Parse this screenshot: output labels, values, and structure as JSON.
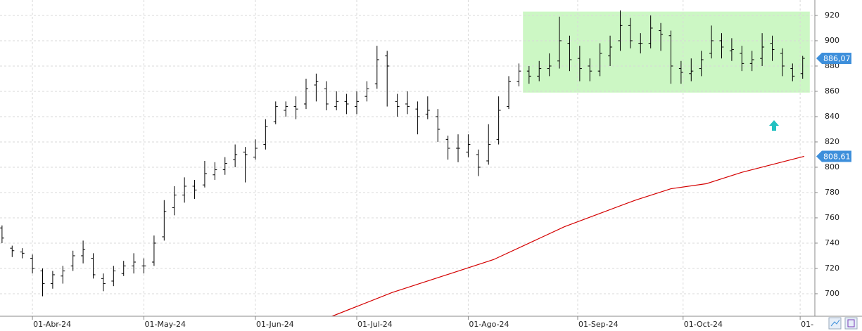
{
  "chart_data": {
    "type": "ohlc",
    "x": [
      0,
      2,
      4,
      6,
      8,
      10,
      12,
      14,
      16,
      18,
      20,
      22,
      24,
      26,
      28,
      30,
      32,
      34,
      36,
      38,
      40,
      42,
      44,
      46,
      48,
      50,
      52,
      54,
      56,
      58,
      60,
      62,
      64,
      66,
      68,
      70,
      72,
      74,
      76,
      78,
      80,
      82,
      84,
      86,
      88,
      90,
      92,
      94,
      96,
      98,
      100,
      102,
      104,
      106,
      108,
      110,
      112,
      114,
      116,
      118,
      120,
      122,
      124,
      126,
      128,
      130,
      132,
      134,
      136,
      138,
      140,
      142,
      144,
      146,
      148,
      150,
      152,
      154,
      156,
      158
    ],
    "open": [
      752,
      736,
      733,
      728,
      718,
      708,
      714,
      722,
      730,
      728,
      712,
      710,
      716,
      722,
      722,
      725,
      745,
      768,
      778,
      785,
      786,
      794,
      798,
      806,
      812,
      808,
      818,
      836,
      845,
      848,
      850,
      865,
      862,
      848,
      852,
      848,
      856,
      866,
      888,
      852,
      850,
      846,
      842,
      840,
      822,
      815,
      812,
      810,
      805,
      822,
      848,
      868,
      876,
      872,
      878,
      884,
      898,
      886,
      880,
      876,
      888,
      900,
      912,
      898,
      898,
      908,
      904,
      878,
      874,
      878,
      890,
      900,
      892,
      890,
      882,
      886,
      898,
      890,
      878,
      874
    ],
    "high": [
      754,
      738,
      736,
      731,
      720,
      718,
      722,
      734,
      742,
      732,
      716,
      722,
      726,
      732,
      728,
      746,
      774,
      785,
      792,
      790,
      805,
      804,
      808,
      818,
      816,
      822,
      838,
      852,
      852,
      856,
      870,
      874,
      868,
      860,
      858,
      860,
      868,
      896,
      892,
      858,
      860,
      852,
      856,
      846,
      825,
      826,
      826,
      814,
      834,
      856,
      872,
      882,
      880,
      884,
      890,
      919,
      904,
      896,
      886,
      898,
      904,
      924,
      918,
      906,
      920,
      914,
      908,
      884,
      886,
      892,
      912,
      906,
      902,
      896,
      892,
      906,
      904,
      894,
      882,
      888
    ],
    "low": [
      740,
      729,
      728,
      716,
      698,
      704,
      708,
      718,
      724,
      712,
      702,
      706,
      714,
      716,
      716,
      722,
      742,
      762,
      772,
      775,
      784,
      790,
      794,
      800,
      788,
      806,
      814,
      834,
      840,
      838,
      846,
      852,
      845,
      845,
      842,
      842,
      852,
      862,
      848,
      840,
      842,
      826,
      838,
      820,
      806,
      804,
      808,
      793,
      802,
      818,
      846,
      864,
      866,
      868,
      872,
      878,
      876,
      868,
      868,
      872,
      880,
      892,
      894,
      890,
      894,
      892,
      866,
      866,
      868,
      872,
      886,
      886,
      884,
      876,
      876,
      880,
      884,
      872,
      868,
      870
    ],
    "close": [
      744,
      734,
      732,
      720,
      708,
      715,
      718,
      730,
      735,
      715,
      708,
      718,
      722,
      725,
      722,
      740,
      765,
      778,
      785,
      782,
      795,
      798,
      803,
      810,
      810,
      815,
      832,
      848,
      848,
      846,
      862,
      868,
      850,
      852,
      850,
      852,
      862,
      885,
      880,
      848,
      848,
      840,
      845,
      830,
      815,
      815,
      818,
      800,
      818,
      845,
      868,
      876,
      872,
      878,
      880,
      900,
      885,
      878,
      876,
      890,
      895,
      912,
      900,
      898,
      910,
      905,
      880,
      875,
      876,
      885,
      900,
      895,
      893,
      882,
      885,
      895,
      893,
      880,
      872,
      886.07
    ],
    "color": "#000000",
    "moving_average": {
      "x": [
        65,
        77,
        97,
        111,
        125,
        132,
        139,
        146,
        158.3
      ],
      "values": [
        682,
        701,
        727,
        753,
        774,
        783,
        787,
        796,
        808.61
      ],
      "color": "#d40000"
    },
    "highlight": {
      "x": [
        102.8,
        159.4
      ],
      "y": [
        859,
        923
      ],
      "color": "#ccf7c4"
    },
    "price_labels": [
      {
        "value": 886.07,
        "label": "886,07"
      },
      {
        "value": 808.61,
        "label": "808,61"
      }
    ],
    "price_label_color": "#3d8fdb",
    "xlim": [
      -0.4,
      160.4
    ],
    "xticks": [
      {
        "value": 6,
        "label": "01-Abr-24"
      },
      {
        "value": 28,
        "label": "01-May-24"
      },
      {
        "value": 50,
        "label": "01-Jun-24"
      },
      {
        "value": 70,
        "label": "01-Jul-24"
      },
      {
        "value": 92,
        "label": "01-Ago-24"
      },
      {
        "value": 113.6,
        "label": "01-Sep-24"
      },
      {
        "value": 134.4,
        "label": "01-Oct-24"
      },
      {
        "value": 157.5,
        "label": "01-"
      }
    ],
    "ylim": [
      682.2,
      932.2
    ],
    "yticks": [
      700,
      720,
      740,
      760,
      780,
      800,
      820,
      840,
      860,
      880,
      900,
      920
    ],
    "grid": true
  }
}
